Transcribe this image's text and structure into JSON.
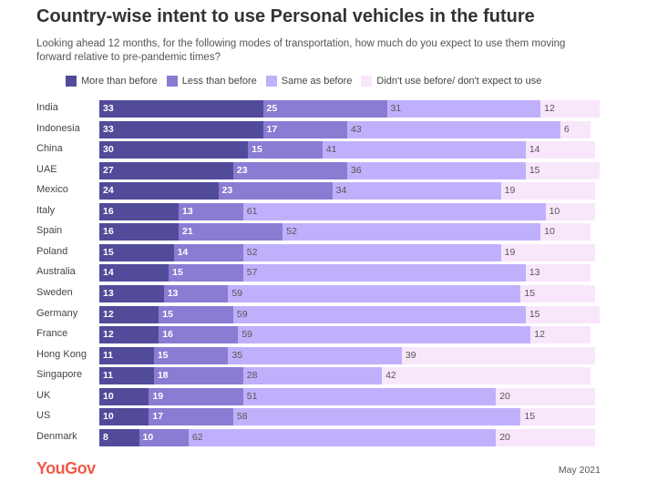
{
  "chart_data": {
    "type": "bar",
    "stacked": true,
    "orientation": "horizontal",
    "title": "Country-wise intent to use Personal vehicles in the future",
    "subtitle": "Looking ahead 12 months, for the following modes of transportation, how much do you expect to use them moving forward relative to pre-pandemic times?",
    "legend_position": "top",
    "categories": [
      "India",
      "Indonesia",
      "China",
      "UAE",
      "Mexico",
      "Italy",
      "Spain",
      "Poland",
      "Australia",
      "Sweden",
      "Germany",
      "France",
      "Hong Kong",
      "Singapore",
      "UK",
      "US",
      "Denmark"
    ],
    "series": [
      {
        "name": "More than before",
        "color": "#524b9a",
        "values": [
          33,
          33,
          30,
          27,
          24,
          16,
          16,
          15,
          14,
          13,
          12,
          12,
          11,
          11,
          10,
          10,
          8
        ]
      },
      {
        "name": "Less than before",
        "color": "#8a7bd3",
        "values": [
          25,
          17,
          15,
          23,
          23,
          13,
          21,
          14,
          15,
          13,
          15,
          16,
          15,
          18,
          19,
          17,
          10
        ]
      },
      {
        "name": "Same as before",
        "color": "#c0b0fc",
        "values": [
          31,
          43,
          41,
          36,
          34,
          61,
          52,
          52,
          57,
          59,
          59,
          59,
          35,
          28,
          51,
          58,
          62
        ]
      },
      {
        "name": "Didn't use before/ don't expect to use",
        "color": "#f8e6fb",
        "values": [
          12,
          6,
          14,
          15,
          19,
          10,
          10,
          19,
          13,
          15,
          15,
          12,
          39,
          42,
          20,
          15,
          20
        ]
      }
    ]
  },
  "brand": "YouGov",
  "date": "May 2021"
}
